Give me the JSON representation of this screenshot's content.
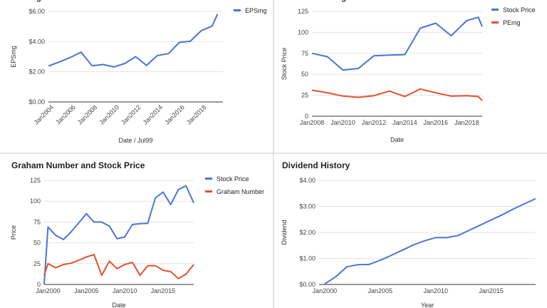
{
  "colors": {
    "blue": "#4a74d6",
    "red": "#e4512f",
    "grid": "#e3e3e3",
    "axis": "#333333",
    "divider": "#c8c8c8"
  },
  "chart_data": [
    {
      "type": "line",
      "title": "EPSmg",
      "xlabel": "Date / Jul99",
      "ylabel": "EPSmg",
      "x_ticks": [
        "Jan2004",
        "Jan2006",
        "Jan2008",
        "Jan2010",
        "Jan2012",
        "Jan2014",
        "Jan2016",
        "Jan2018"
      ],
      "y_ticks": [
        "$0.00",
        "$2.00",
        "$4.00",
        "$6.00"
      ],
      "xlim": [
        "2003-07-01",
        "2019-07-01"
      ],
      "ylim": [
        0,
        6
      ],
      "legend": "top-right",
      "series": [
        {
          "name": "EPSmg",
          "color": "#4a74d6",
          "points": [
            [
              "2003-07-01",
              2.38
            ],
            [
              "2004-07-01",
              2.65
            ],
            [
              "2005-07-01",
              2.95
            ],
            [
              "2006-07-01",
              3.3
            ],
            [
              "2007-07-01",
              2.4
            ],
            [
              "2008-07-01",
              2.48
            ],
            [
              "2009-07-01",
              2.32
            ],
            [
              "2010-07-01",
              2.55
            ],
            [
              "2011-07-01",
              3.0
            ],
            [
              "2012-07-01",
              2.42
            ],
            [
              "2013-07-01",
              3.08
            ],
            [
              "2014-07-01",
              3.2
            ],
            [
              "2015-07-01",
              3.95
            ],
            [
              "2016-07-01",
              4.02
            ],
            [
              "2017-07-01",
              4.72
            ],
            [
              "2018-07-01",
              5.02
            ],
            [
              "2019-01-01",
              5.82
            ]
          ]
        }
      ]
    },
    {
      "type": "line",
      "title": "Price and PEmg",
      "xlabel": "Date",
      "ylabel": "Stock Price",
      "x_ticks": [
        "Jan2008",
        "Jan2010",
        "Jan2012",
        "Jan2014",
        "Jan2016",
        "Jan2018"
      ],
      "y_ticks": [
        "0",
        "25",
        "50",
        "75",
        "100",
        "125"
      ],
      "xlim": [
        "2008-01-01",
        "2019-01-01"
      ],
      "ylim": [
        0,
        125
      ],
      "legend": "top-right",
      "series": [
        {
          "name": "Stock Price",
          "color": "#4a74d6",
          "points": [
            [
              "2008-01-01",
              75
            ],
            [
              "2009-01-01",
              71
            ],
            [
              "2010-01-01",
              55
            ],
            [
              "2011-01-01",
              57
            ],
            [
              "2012-01-01",
              72
            ],
            [
              "2013-01-01",
              73
            ],
            [
              "2014-01-01",
              73.5
            ],
            [
              "2015-01-01",
              105
            ],
            [
              "2016-01-01",
              111
            ],
            [
              "2017-01-01",
              96
            ],
            [
              "2018-01-01",
              114
            ],
            [
              "2018-10-01",
              118
            ],
            [
              "2019-01-01",
              107
            ]
          ]
        },
        {
          "name": "PEmg",
          "color": "#e4512f",
          "points": [
            [
              "2008-01-01",
              31
            ],
            [
              "2009-01-01",
              28
            ],
            [
              "2010-01-01",
              24
            ],
            [
              "2011-01-01",
              22.5
            ],
            [
              "2012-01-01",
              24.5
            ],
            [
              "2013-01-01",
              30
            ],
            [
              "2014-01-01",
              23.5
            ],
            [
              "2015-01-01",
              32.5
            ],
            [
              "2016-01-01",
              28
            ],
            [
              "2017-01-01",
              24
            ],
            [
              "2018-01-01",
              24.5
            ],
            [
              "2018-10-01",
              23.5
            ],
            [
              "2019-01-01",
              18.5
            ]
          ]
        }
      ]
    },
    {
      "type": "line",
      "title": "Graham Number and Stock Price",
      "xlabel": "Date",
      "ylabel": "Price",
      "x_ticks": [
        "Jan2000",
        "Jan2005",
        "Jan2010",
        "Jan2015"
      ],
      "y_ticks": [
        "0",
        "25",
        "50",
        "75",
        "100",
        "125"
      ],
      "xlim": [
        "1999-07-01",
        "2019-01-01"
      ],
      "ylim": [
        0,
        125
      ],
      "legend": "top-right",
      "series": [
        {
          "name": "Stock Price",
          "color": "#4a74d6",
          "points": [
            [
              "1999-07-01",
              0
            ],
            [
              "2000-01-01",
              69
            ],
            [
              "2001-01-01",
              59
            ],
            [
              "2002-01-01",
              54
            ],
            [
              "2003-01-01",
              63
            ],
            [
              "2004-01-01",
              74
            ],
            [
              "2005-01-01",
              85
            ],
            [
              "2006-01-01",
              75
            ],
            [
              "2007-01-01",
              75
            ],
            [
              "2008-01-01",
              70
            ],
            [
              "2009-01-01",
              55
            ],
            [
              "2010-01-01",
              57
            ],
            [
              "2011-01-01",
              72
            ],
            [
              "2012-01-01",
              73
            ],
            [
              "2013-01-01",
              73.5
            ],
            [
              "2014-01-01",
              104
            ],
            [
              "2015-01-01",
              111
            ],
            [
              "2016-01-01",
              96
            ],
            [
              "2017-01-01",
              114
            ],
            [
              "2018-01-01",
              118.5
            ],
            [
              "2019-01-01",
              98
            ]
          ]
        },
        {
          "name": "Graham Number",
          "color": "#e4512f",
          "points": [
            [
              "1999-07-01",
              11
            ],
            [
              "2000-01-01",
              25
            ],
            [
              "2001-01-01",
              20
            ],
            [
              "2002-01-01",
              24
            ],
            [
              "2003-01-01",
              25.5
            ],
            [
              "2004-01-01",
              29
            ],
            [
              "2005-01-01",
              33
            ],
            [
              "2006-01-01",
              36
            ],
            [
              "2007-01-01",
              11
            ],
            [
              "2008-01-01",
              28
            ],
            [
              "2009-01-01",
              19
            ],
            [
              "2010-01-01",
              24
            ],
            [
              "2011-01-01",
              26.5
            ],
            [
              "2012-01-01",
              11
            ],
            [
              "2013-01-01",
              22.5
            ],
            [
              "2014-01-01",
              22.5
            ],
            [
              "2015-01-01",
              17
            ],
            [
              "2016-01-01",
              15.5
            ],
            [
              "2017-01-01",
              7
            ],
            [
              "2018-01-01",
              12.5
            ],
            [
              "2019-01-01",
              24
            ]
          ]
        }
      ]
    },
    {
      "type": "line",
      "title": "Dividend History",
      "xlabel": "Year",
      "ylabel": "Dividend",
      "x_ticks": [
        "Jan2000",
        "Jan2005",
        "Jan2010",
        "Jan2015"
      ],
      "y_ticks": [
        "$0.00",
        "$1.00",
        "$2.00",
        "$3.00",
        "$4.00"
      ],
      "xlim": [
        "1999-07-01",
        "2019-01-01"
      ],
      "ylim": [
        0,
        4
      ],
      "legend": "none",
      "series": [
        {
          "name": "",
          "color": "#4a74d6",
          "points": [
            [
              "2000-01-01",
              0.02
            ],
            [
              "2001-01-01",
              0.3
            ],
            [
              "2002-01-01",
              0.68
            ],
            [
              "2003-01-01",
              0.76
            ],
            [
              "2004-01-01",
              0.77
            ],
            [
              "2005-01-01",
              0.93
            ],
            [
              "2006-01-01",
              1.12
            ],
            [
              "2007-01-01",
              1.32
            ],
            [
              "2008-01-01",
              1.52
            ],
            [
              "2009-01-01",
              1.68
            ],
            [
              "2010-01-01",
              1.8
            ],
            [
              "2011-01-01",
              1.8
            ],
            [
              "2012-01-01",
              1.88
            ],
            [
              "2013-01-01",
              2.08
            ],
            [
              "2014-01-01",
              2.28
            ],
            [
              "2015-01-01",
              2.48
            ],
            [
              "2016-01-01",
              2.68
            ],
            [
              "2017-01-01",
              2.9
            ],
            [
              "2018-01-01",
              3.1
            ],
            [
              "2019-01-01",
              3.3
            ]
          ]
        }
      ]
    }
  ]
}
